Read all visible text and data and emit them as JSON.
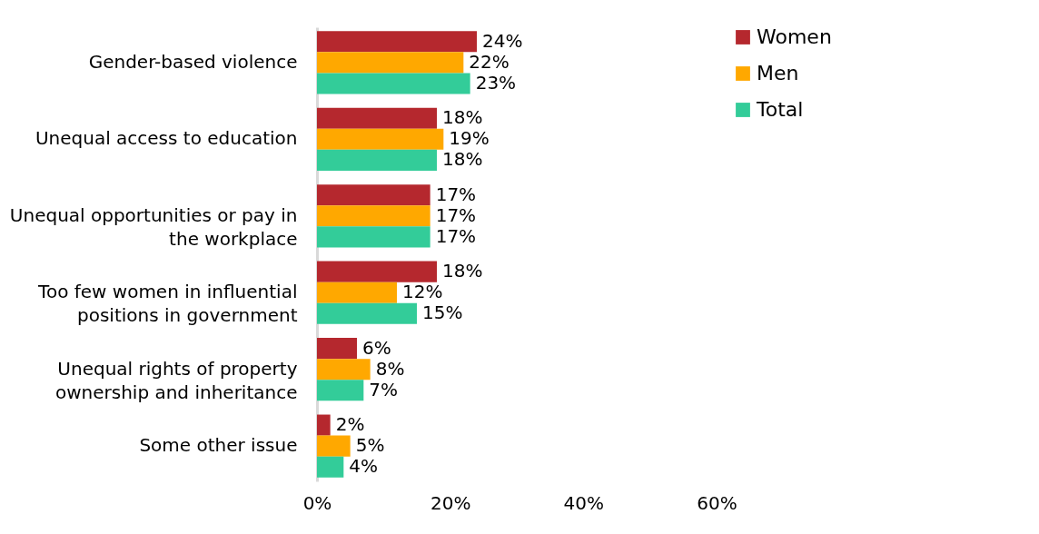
{
  "chart_data": {
    "type": "bar",
    "orientation": "horizontal",
    "categories": [
      "Gender-based violence",
      "Unequal access to education",
      "Unequal opportunities or pay in the workplace",
      "Too few women in influential positions in government",
      "Unequal rights of property ownership and inheritance",
      "Some other issue"
    ],
    "series": [
      {
        "name": "Women",
        "color": "#b5282e",
        "values": [
          24,
          18,
          17,
          18,
          6,
          2
        ],
        "value_labels": [
          "24%",
          "18%",
          "17%",
          "18%",
          "6%",
          "2%"
        ]
      },
      {
        "name": "Men",
        "color": "#ffa800",
        "values": [
          22,
          19,
          17,
          12,
          8,
          5
        ],
        "value_labels": [
          "22%",
          "19%",
          "17%",
          "12%",
          "8%",
          "5%"
        ]
      },
      {
        "name": "Total",
        "color": "#33cc99",
        "values": [
          23,
          18,
          17,
          15,
          7,
          4
        ],
        "value_labels": [
          "23%",
          "18%",
          "17%",
          "15%",
          "7%",
          "4%"
        ]
      }
    ],
    "xlim": [
      0,
      60
    ],
    "xticks": [
      {
        "value": 0,
        "label": "0%"
      },
      {
        "value": 20,
        "label": "20%"
      },
      {
        "value": 40,
        "label": "40%"
      },
      {
        "value": 60,
        "label": "60%"
      }
    ],
    "grid": false,
    "legend": "right"
  }
}
